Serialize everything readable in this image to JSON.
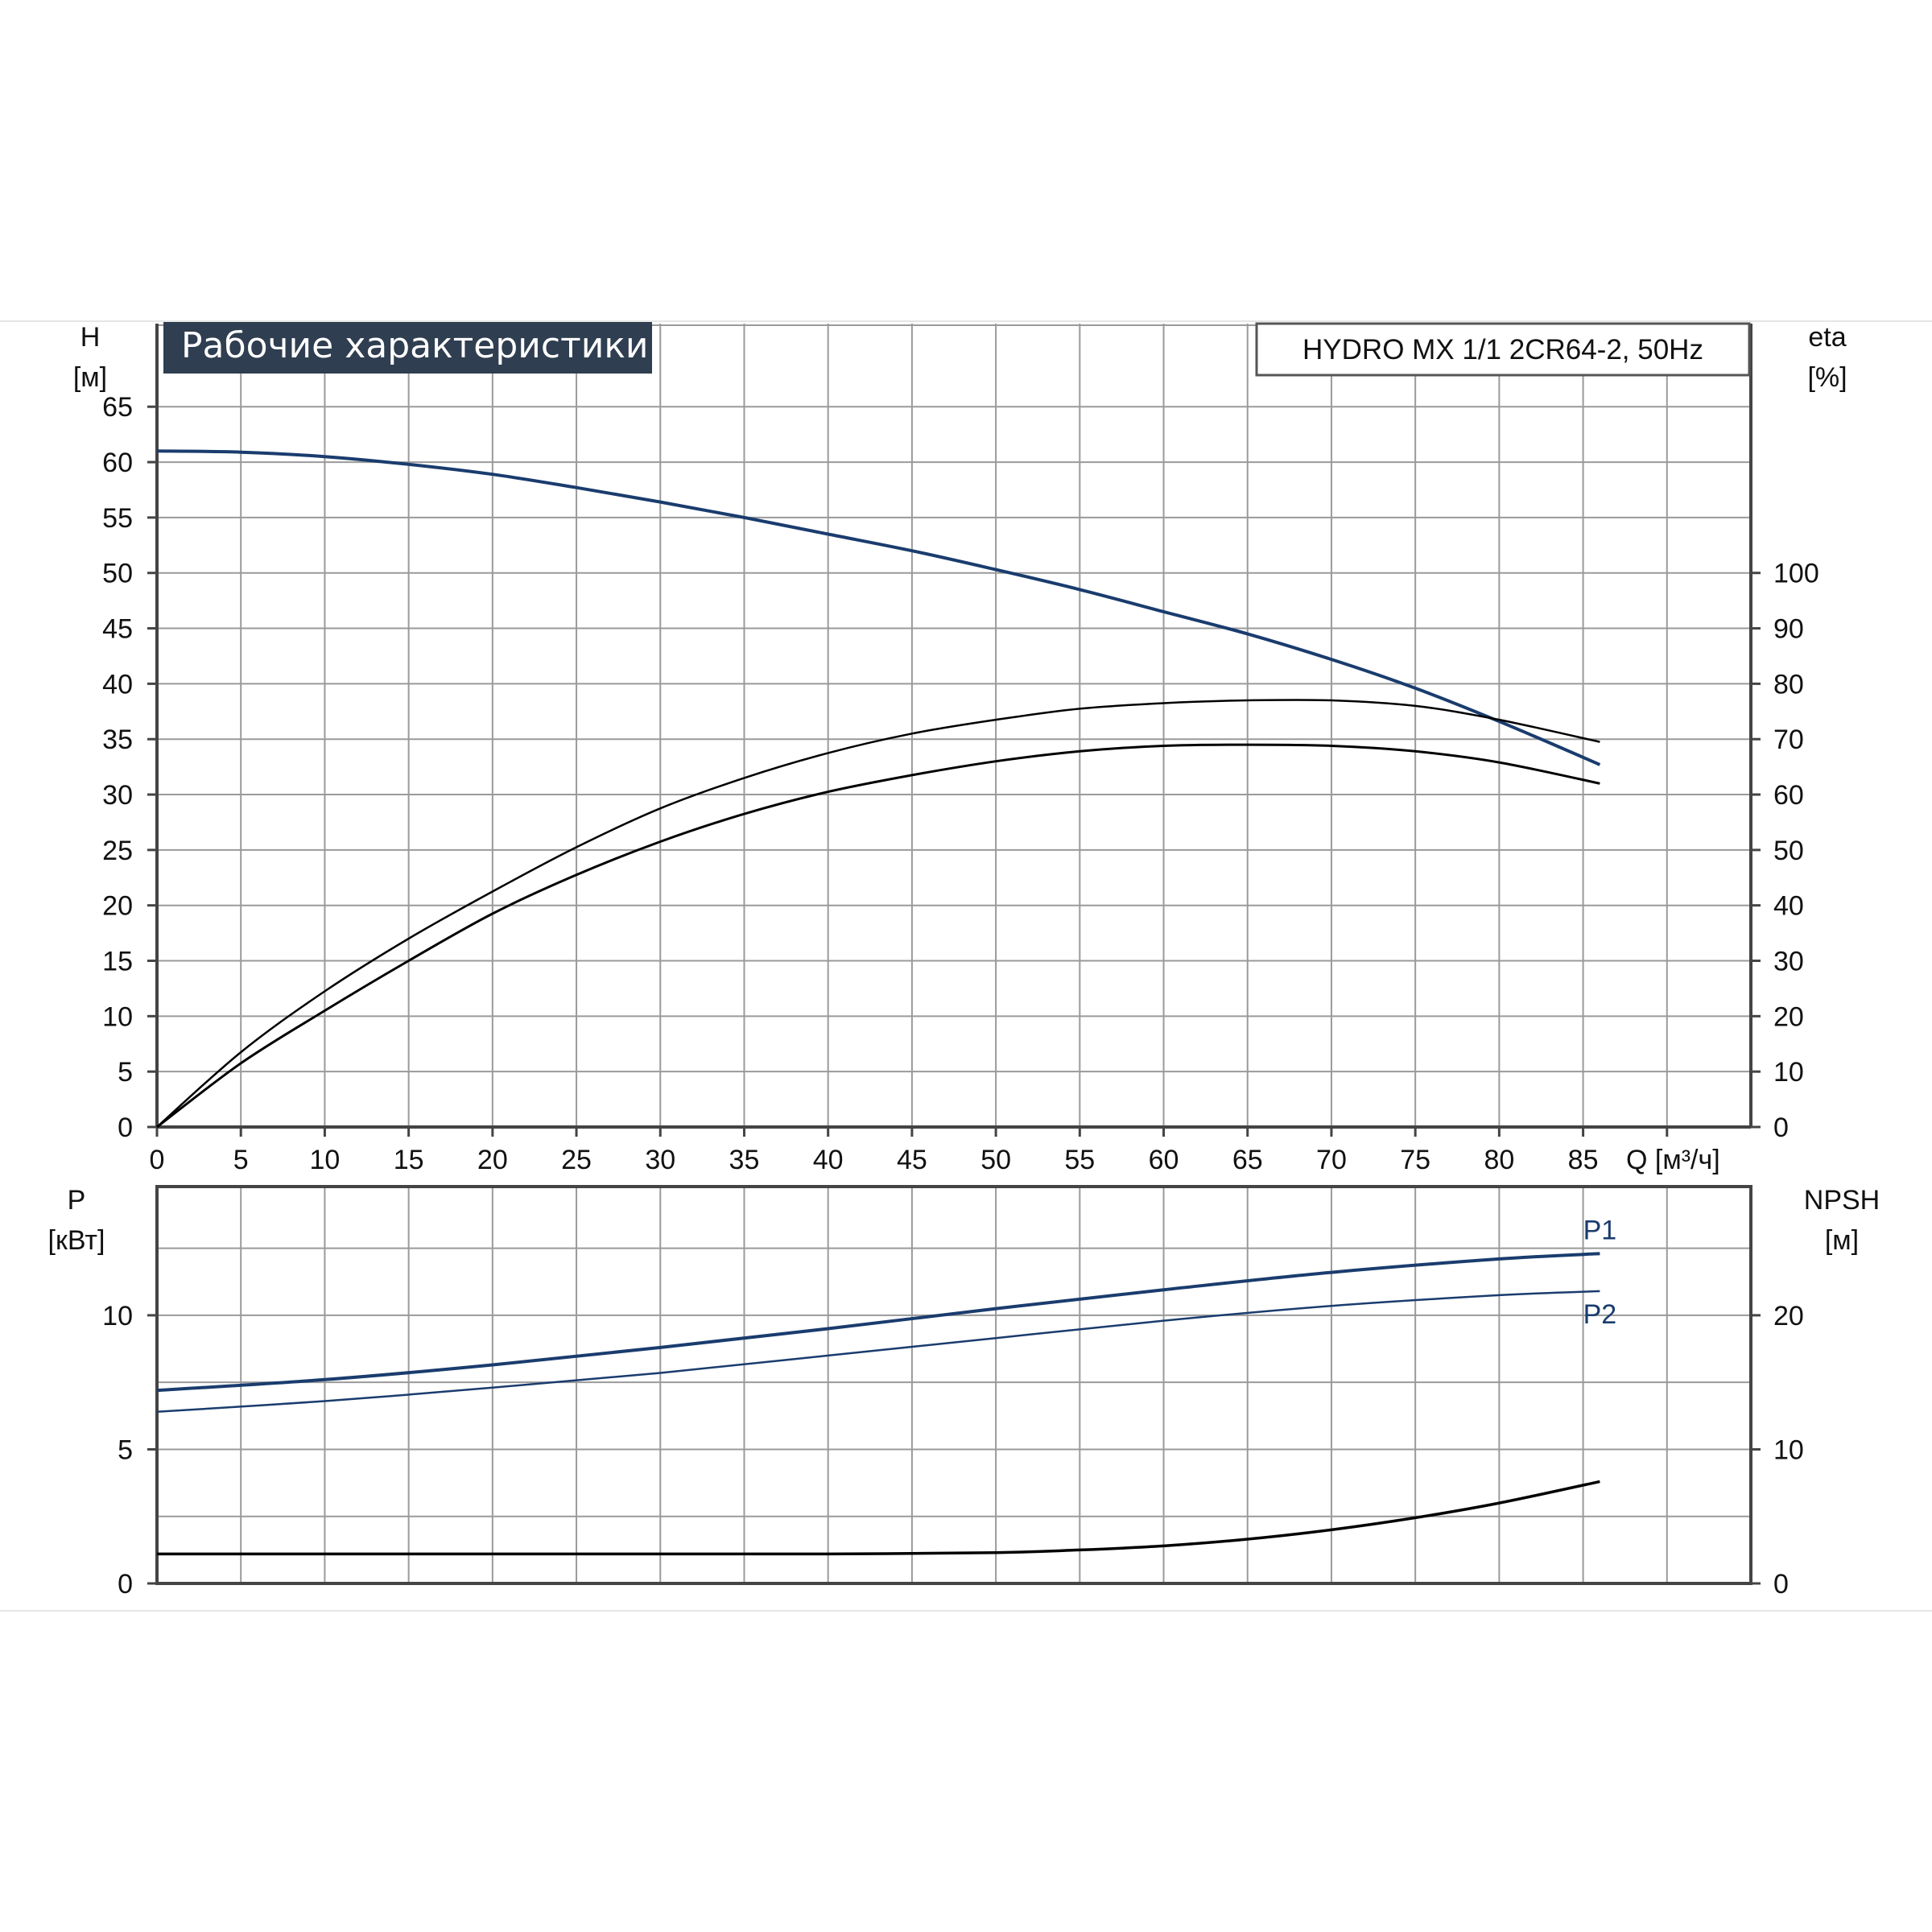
{
  "chart_data": [
    {
      "type": "line",
      "title": "Рабочие характеристики",
      "model_label": "HYDRO MX 1/1 2CR64-2, 50Hz",
      "xlabel": "Q [м³/ч]",
      "x_tick_labels": [
        "0",
        "5",
        "10",
        "15",
        "20",
        "25",
        "30",
        "35",
        "40",
        "45",
        "50",
        "55",
        "60",
        "65",
        "70",
        "75",
        "80",
        "85"
      ],
      "xlim": [
        0,
        95
      ],
      "y_left": {
        "label_line1": "H",
        "label_line2": "[м]",
        "ylim": [
          0,
          72.5
        ],
        "tick_labels": [
          "0",
          "5",
          "10",
          "15",
          "20",
          "25",
          "30",
          "35",
          "40",
          "45",
          "50",
          "55",
          "60",
          "65"
        ]
      },
      "y_right": {
        "label_line1": "eta",
        "label_line2": "[%]",
        "ylim": [
          0,
          145
        ],
        "tick_labels": [
          "0",
          "10",
          "20",
          "30",
          "40",
          "50",
          "60",
          "70",
          "80",
          "90",
          "100"
        ]
      },
      "grid": true,
      "series": [
        {
          "axis": "left",
          "color": "#1a3c6e",
          "x": [
            0,
            5,
            10,
            15,
            20,
            25,
            30,
            35,
            40,
            45,
            50,
            55,
            60,
            65,
            70,
            75,
            80,
            86
          ],
          "y": [
            61,
            60.9,
            60.5,
            59.8,
            58.9,
            57.7,
            56.4,
            55,
            53.5,
            52,
            50.3,
            48.5,
            46.5,
            44.5,
            42.2,
            39.6,
            36.6,
            32.7
          ]
        },
        {
          "axis": "right",
          "color": "#000000",
          "x": [
            0,
            5,
            10,
            15,
            20,
            25,
            30,
            35,
            40,
            45,
            50,
            55,
            60,
            65,
            70,
            75,
            80,
            86
          ],
          "y": [
            0,
            13.5,
            24.5,
            34,
            42.5,
            50.5,
            57.5,
            63,
            67.5,
            71,
            73.5,
            75.5,
            76.5,
            77,
            77,
            76,
            73.5,
            69.5
          ]
        },
        {
          "axis": "right",
          "color": "#000000",
          "x": [
            0,
            5,
            10,
            15,
            20,
            25,
            30,
            35,
            40,
            45,
            50,
            55,
            60,
            65,
            70,
            75,
            80,
            86
          ],
          "y": [
            0,
            11.5,
            21,
            30,
            38.5,
            45.5,
            51.5,
            56.5,
            60.5,
            63.5,
            66,
            67.8,
            68.8,
            69,
            68.8,
            67.8,
            65.8,
            62
          ]
        }
      ]
    },
    {
      "type": "line",
      "xlim": [
        0,
        95
      ],
      "y_left": {
        "label_line1": "P",
        "label_line2": "[кВт]",
        "ylim": [
          0,
          14.8
        ],
        "tick_labels": [
          "0",
          "5",
          "10"
        ]
      },
      "y_right": {
        "label_line1": "NPSH",
        "label_line2": "[м]",
        "ylim": [
          0,
          29.6
        ],
        "tick_labels": [
          "0",
          "10",
          "20"
        ]
      },
      "grid": true,
      "series": [
        {
          "name": "P1",
          "axis": "left",
          "color": "#1a3c6e",
          "x": [
            0,
            10,
            20,
            30,
            40,
            50,
            60,
            70,
            80,
            86
          ],
          "y": [
            7.2,
            7.6,
            8.15,
            8.8,
            9.5,
            10.25,
            10.95,
            11.6,
            12.1,
            12.3
          ]
        },
        {
          "name": "P2",
          "axis": "left",
          "color": "#1a3c6e",
          "x": [
            0,
            10,
            20,
            30,
            40,
            50,
            60,
            70,
            80,
            86
          ],
          "y": [
            6.4,
            6.8,
            7.3,
            7.85,
            8.5,
            9.15,
            9.8,
            10.35,
            10.75,
            10.9
          ]
        },
        {
          "axis": "right",
          "color": "#000000",
          "x": [
            0,
            10,
            20,
            30,
            40,
            50,
            55,
            60,
            65,
            70,
            75,
            80,
            86
          ],
          "y": [
            2.2,
            2.2,
            2.2,
            2.2,
            2.2,
            2.3,
            2.5,
            2.8,
            3.3,
            4.0,
            4.9,
            6.0,
            7.6
          ]
        }
      ]
    }
  ]
}
